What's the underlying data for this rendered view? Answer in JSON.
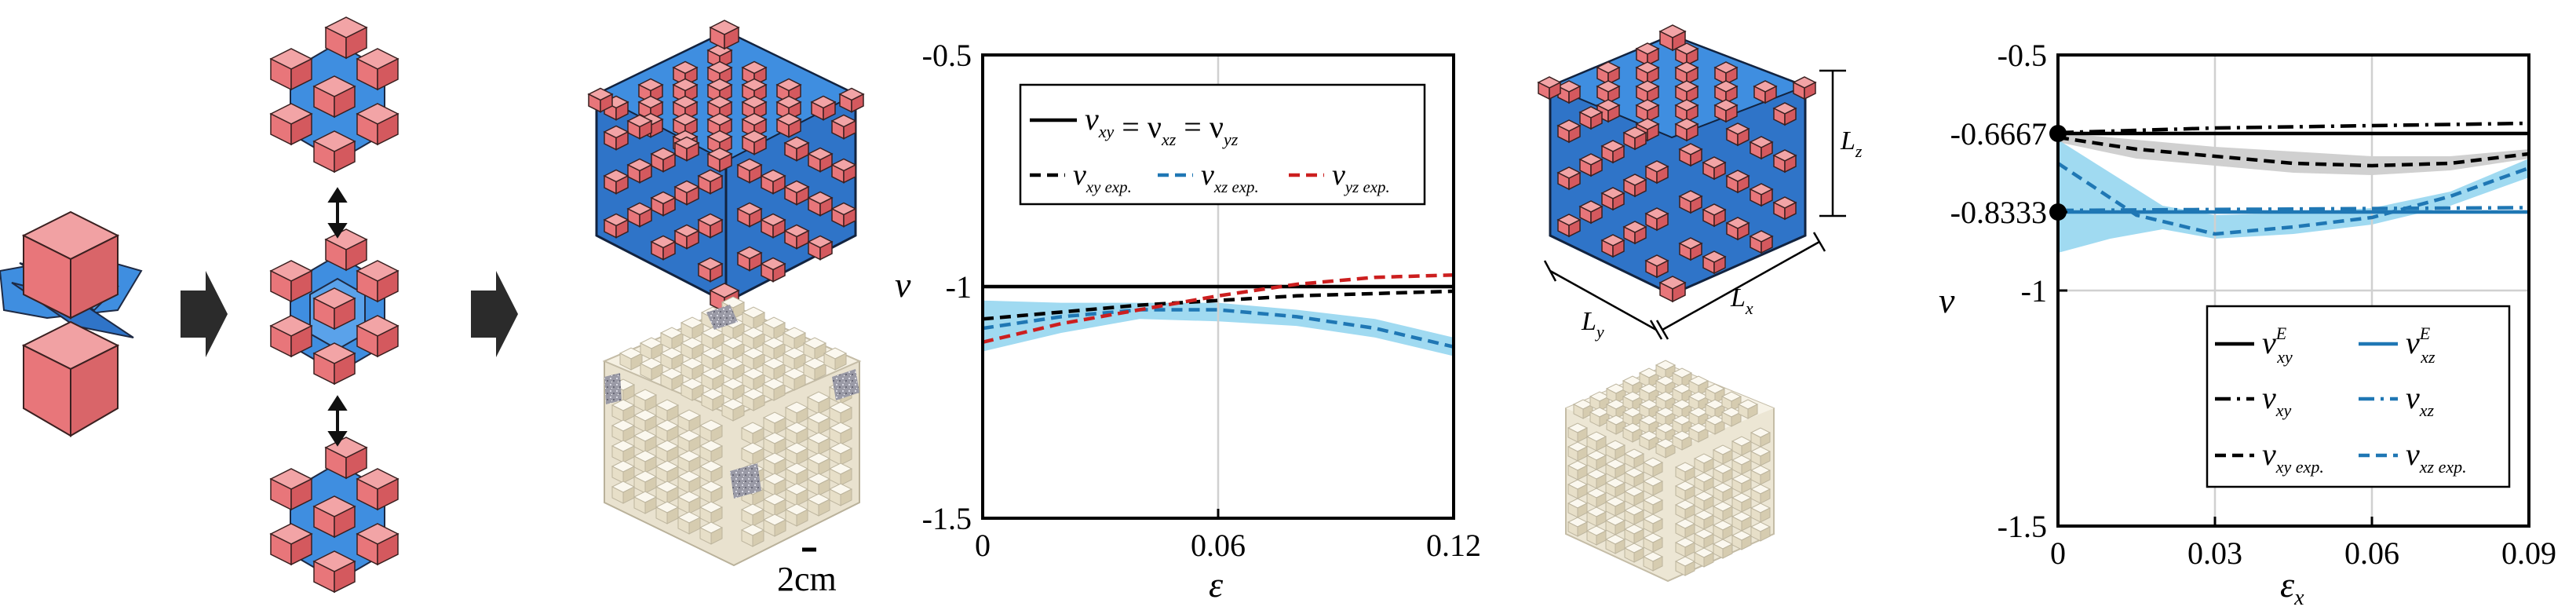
{
  "panel_left": {
    "scale_bar_label": "2cm"
  },
  "panel_right_model": {
    "dim_labels": {
      "lz": "L",
      "lz_sub": "z",
      "ly": "L",
      "ly_sub": "y",
      "lx": "L",
      "lx_sub": "x"
    }
  },
  "colors": {
    "cube_red": "#e8767a",
    "cube_blue": "#3f8ee0",
    "black": "#000000",
    "blue_line": "#1f77b4",
    "red_line": "#cc1f1f",
    "band_blue": "#8fd4ef",
    "band_grey": "#c8c8c8"
  },
  "chart_data": [
    {
      "type": "line",
      "x_ticks": [
        "0",
        "0.06",
        "0.12"
      ],
      "y_ticks": [
        "-0.5",
        "-1",
        "-1.5"
      ],
      "xlabel": "ε",
      "ylabel": "ν",
      "xlim": [
        0,
        0.12
      ],
      "ylim": [
        -1.5,
        -0.5
      ],
      "grid": "vertical",
      "legend_placement": "top",
      "legend": [
        {
          "label": "ν",
          "sub": "xy",
          "mid1": " = ν",
          "sub2": "xz",
          "mid2": " = ν",
          "sub3": "yz",
          "style": "solid",
          "color": "#000000"
        },
        {
          "label": "ν",
          "sub": "xy exp.",
          "style": "dashed",
          "color": "#000000"
        },
        {
          "label": "ν",
          "sub": "xz exp.",
          "style": "dashed",
          "color": "#1f77b4"
        },
        {
          "label": "ν",
          "sub": "yz exp.",
          "style": "dashed",
          "color": "#cc1f1f"
        }
      ],
      "series": [
        {
          "style": "solid",
          "color": "#000000",
          "x": [
            0,
            0.12
          ],
          "y": [
            -1.0,
            -1.0
          ]
        },
        {
          "style": "dashed",
          "color": "#000000",
          "x": [
            0,
            0.02,
            0.04,
            0.06,
            0.08,
            0.1,
            0.12
          ],
          "y": [
            -1.07,
            -1.055,
            -1.04,
            -1.03,
            -1.02,
            -1.015,
            -1.01
          ]
        },
        {
          "style": "dashed",
          "color": "#1f77b4",
          "x": [
            0,
            0.02,
            0.04,
            0.06,
            0.08,
            0.1,
            0.12
          ],
          "y": [
            -1.09,
            -1.065,
            -1.05,
            -1.05,
            -1.065,
            -1.09,
            -1.13
          ]
        },
        {
          "style": "dashed",
          "color": "#cc1f1f",
          "x": [
            0,
            0.02,
            0.04,
            0.06,
            0.08,
            0.1,
            0.12
          ],
          "y": [
            -1.12,
            -1.08,
            -1.05,
            -1.02,
            -0.995,
            -0.98,
            -0.975
          ]
        }
      ],
      "bands": [
        {
          "color": "#8fd4ef",
          "x": [
            0,
            0.02,
            0.04,
            0.06,
            0.08,
            0.1,
            0.12
          ],
          "upper": [
            -1.03,
            -1.035,
            -1.035,
            -1.035,
            -1.05,
            -1.07,
            -1.11
          ],
          "lower": [
            -1.14,
            -1.1,
            -1.07,
            -1.075,
            -1.085,
            -1.11,
            -1.15
          ]
        }
      ]
    },
    {
      "type": "line",
      "x_ticks": [
        "0",
        "0.03",
        "0.06",
        "0.09"
      ],
      "y_ticks": [
        "-0.5",
        "-0.6667",
        "-0.8333",
        "-1",
        "-1.5"
      ],
      "xlabel": "ε",
      "xlabel_sub": "x",
      "ylabel": "ν",
      "xlim": [
        0,
        0.09
      ],
      "ylim": [
        -1.5,
        -0.5
      ],
      "grid": "on",
      "legend_placement": "bottom-right",
      "marked_points": [
        [
          0,
          -0.6667
        ],
        [
          0,
          -0.8333
        ]
      ],
      "legend": [
        {
          "label": "ν",
          "sub": "xy",
          "sup": "E",
          "style": "solid",
          "color": "#000000"
        },
        {
          "label": "ν",
          "sub": "xz",
          "sup": "E",
          "style": "solid",
          "color": "#1f77b4"
        },
        {
          "label": "ν",
          "sub": "xy",
          "style": "dashdot",
          "color": "#000000"
        },
        {
          "label": "ν",
          "sub": "xz",
          "style": "dashdot",
          "color": "#1f77b4"
        },
        {
          "label": "ν",
          "sub": "xy exp.",
          "style": "dashed",
          "color": "#000000"
        },
        {
          "label": "ν",
          "sub": "xz exp.",
          "style": "dashed",
          "color": "#1f77b4"
        }
      ],
      "series": [
        {
          "style": "solid",
          "color": "#000000",
          "x": [
            0,
            0.09
          ],
          "y": [
            -0.6667,
            -0.6667
          ]
        },
        {
          "style": "solid",
          "color": "#1f77b4",
          "x": [
            0,
            0.09
          ],
          "y": [
            -0.8333,
            -0.8333
          ]
        },
        {
          "style": "dashdot",
          "color": "#000000",
          "x": [
            0,
            0.03,
            0.06,
            0.09
          ],
          "y": [
            -0.665,
            -0.655,
            -0.65,
            -0.645
          ]
        },
        {
          "style": "dashdot",
          "color": "#1f77b4",
          "x": [
            0,
            0.03,
            0.06,
            0.09
          ],
          "y": [
            -0.83,
            -0.828,
            -0.826,
            -0.824
          ]
        },
        {
          "style": "dashed",
          "color": "#000000",
          "x": [
            0,
            0.015,
            0.03,
            0.045,
            0.06,
            0.075,
            0.09
          ],
          "y": [
            -0.675,
            -0.7,
            -0.715,
            -0.73,
            -0.735,
            -0.73,
            -0.71
          ]
        },
        {
          "style": "dashed",
          "color": "#1f77b4",
          "x": [
            0,
            0.015,
            0.03,
            0.045,
            0.06,
            0.075,
            0.09
          ],
          "y": [
            -0.73,
            -0.84,
            -0.88,
            -0.865,
            -0.845,
            -0.8,
            -0.74
          ]
        }
      ],
      "bands": [
        {
          "color": "#c8c8c8",
          "x": [
            0,
            0.015,
            0.03,
            0.045,
            0.06,
            0.075,
            0.09
          ],
          "upper": [
            -0.665,
            -0.68,
            -0.695,
            -0.705,
            -0.715,
            -0.715,
            -0.7
          ],
          "lower": [
            -0.685,
            -0.72,
            -0.735,
            -0.75,
            -0.755,
            -0.745,
            -0.72
          ]
        },
        {
          "color": "#8fd4ef",
          "x": [
            0,
            0.01,
            0.02,
            0.03,
            0.045,
            0.06,
            0.075,
            0.09
          ],
          "upper": [
            -0.68,
            -0.75,
            -0.82,
            -0.84,
            -0.835,
            -0.825,
            -0.79,
            -0.72
          ],
          "lower": [
            -0.92,
            -0.89,
            -0.87,
            -0.89,
            -0.88,
            -0.86,
            -0.82,
            -0.76
          ]
        }
      ]
    }
  ]
}
